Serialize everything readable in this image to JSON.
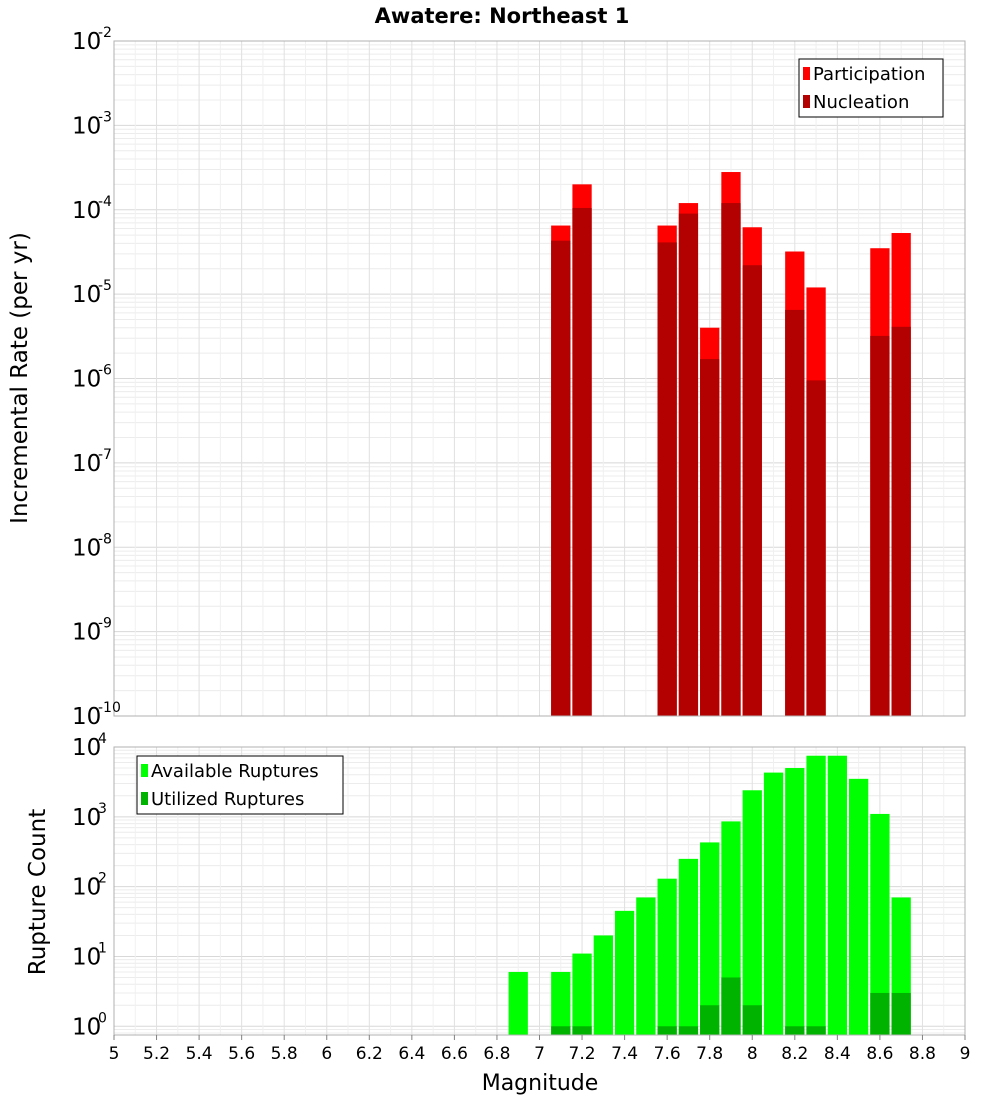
{
  "chart_data": [
    {
      "type": "bar",
      "title": "Awatere: Northeast 1",
      "xlabel": "",
      "ylabel": "Incremental Rate (per yr)",
      "yscale": "log",
      "xlim": [
        5,
        9
      ],
      "ylim": [
        1e-10,
        0.01
      ],
      "y_tick_exponents": [
        -10,
        -9,
        -8,
        -7,
        -6,
        -5,
        -4,
        -3,
        -2
      ],
      "grid": true,
      "legend_position": "top-right",
      "colors": {
        "Participation": "#ff0000",
        "Nucleation": "#b30000"
      },
      "x": [
        7.1,
        7.2,
        7.6,
        7.7,
        7.8,
        7.9,
        8.0,
        8.2,
        8.3,
        8.6,
        8.7
      ],
      "series": [
        {
          "name": "Participation",
          "values": [
            6.5e-05,
            0.0002,
            6.5e-05,
            0.00012,
            4e-06,
            0.00028,
            6.2e-05,
            3.2e-05,
            1.2e-05,
            3.5e-05,
            5.3e-05
          ]
        },
        {
          "name": "Nucleation",
          "values": [
            4.3e-05,
            0.000105,
            4.1e-05,
            9e-05,
            1.7e-06,
            0.00012,
            2.2e-05,
            6.5e-06,
            9.5e-07,
            3.2e-06,
            4.1e-06
          ]
        }
      ]
    },
    {
      "type": "bar",
      "title": "",
      "xlabel": "Magnitude",
      "ylabel": "Rupture Count",
      "yscale": "log",
      "xlim": [
        5,
        9
      ],
      "ylim": [
        0.75,
        10000
      ],
      "x_ticks": [
        "5",
        "5.2",
        "5.4",
        "5.6",
        "5.8",
        "6",
        "6.2",
        "6.4",
        "6.6",
        "6.8",
        "7",
        "7.2",
        "7.4",
        "7.6",
        "7.8",
        "8",
        "8.2",
        "8.4",
        "8.6",
        "8.8",
        "9"
      ],
      "y_tick_exponents": [
        0,
        1,
        2,
        3,
        4
      ],
      "grid": true,
      "legend_position": "top-left",
      "colors": {
        "Available Ruptures": "#00ff00",
        "Utilized Ruptures": "#00b300"
      },
      "x": [
        6.9,
        7.1,
        7.2,
        7.3,
        7.4,
        7.5,
        7.6,
        7.7,
        7.8,
        7.9,
        8.0,
        8.1,
        8.2,
        8.3,
        8.4,
        8.5,
        8.6,
        8.7
      ],
      "series": [
        {
          "name": "Available Ruptures",
          "values": [
            6,
            6,
            11,
            20,
            45,
            70,
            130,
            250,
            430,
            860,
            2400,
            4300,
            5000,
            7500,
            7500,
            3500,
            1100,
            70
          ]
        },
        {
          "name": "Utilized Ruptures",
          "values": [
            0,
            1,
            1,
            0,
            0,
            0,
            1,
            1,
            2,
            5,
            2,
            0,
            1,
            1,
            0,
            0,
            3,
            3
          ]
        }
      ]
    }
  ]
}
